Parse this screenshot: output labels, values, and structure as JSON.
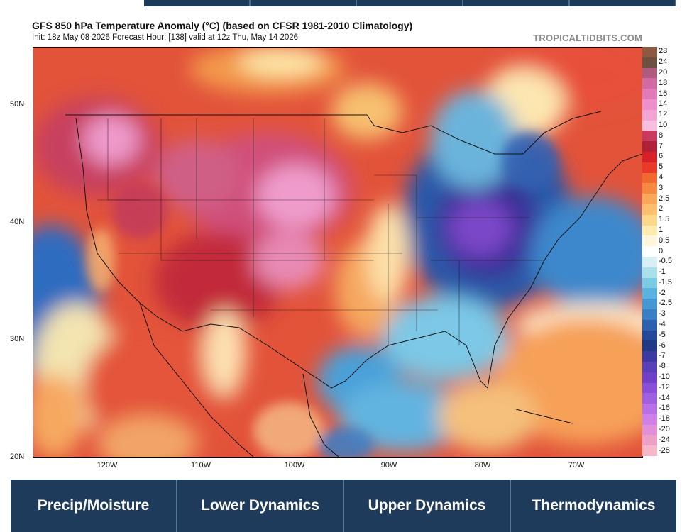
{
  "header": {
    "title": "GFS 850 hPa Temperature Anomaly (°C) (based on CFSR 1981-2010 Climatology)",
    "subtitle": "Init: 18z May 08 2026   Forecast Hour: [138]   valid at 12z Thu, May 14 2026",
    "watermark": "TROPICALTIDBITS.COM"
  },
  "axes": {
    "lat_labels": [
      "50N",
      "40N",
      "30N",
      "20N"
    ],
    "lon_labels": [
      "120W",
      "110W",
      "100W",
      "90W",
      "80W",
      "70W"
    ]
  },
  "colorbar": {
    "labels": [
      "28",
      "24",
      "20",
      "18",
      "16",
      "14",
      "12",
      "10",
      "8",
      "7",
      "6",
      "5",
      "4",
      "3",
      "2.5",
      "2",
      "1.5",
      "1",
      "0.5",
      "0",
      "-0.5",
      "-1",
      "-1.5",
      "-2",
      "-2.5",
      "-3",
      "-4",
      "-5",
      "-6",
      "-7",
      "-8",
      "-10",
      "-12",
      "-14",
      "-16",
      "-18",
      "-20",
      "-24",
      "-28"
    ],
    "colors": [
      "#8c5a40",
      "#6d5140",
      "#b05a80",
      "#d06aa0",
      "#e07ab8",
      "#ec8fcc",
      "#f3a6d6",
      "#f6bedf",
      "#c83a60",
      "#b02038",
      "#d82028",
      "#e83a28",
      "#f06a30",
      "#f48a40",
      "#f8a858",
      "#fac070",
      "#fcd888",
      "#fdebb0",
      "#fef6dc",
      "#ffffff",
      "#d6f0f4",
      "#a8e0ec",
      "#7ccce6",
      "#5ab2de",
      "#4698d2",
      "#3a7ec4",
      "#2c60b0",
      "#24489a",
      "#203a86",
      "#3a3aa0",
      "#5a40b8",
      "#7040c8",
      "#8850d8",
      "#a060e0",
      "#b870e8",
      "#d080e8",
      "#e090d8",
      "#eca0c8",
      "#f4b8c8"
    ]
  },
  "tabs": {
    "bottom": [
      "Precip/Moisture",
      "Lower Dynamics",
      "Upper Dynamics",
      "Thermodynamics"
    ]
  }
}
